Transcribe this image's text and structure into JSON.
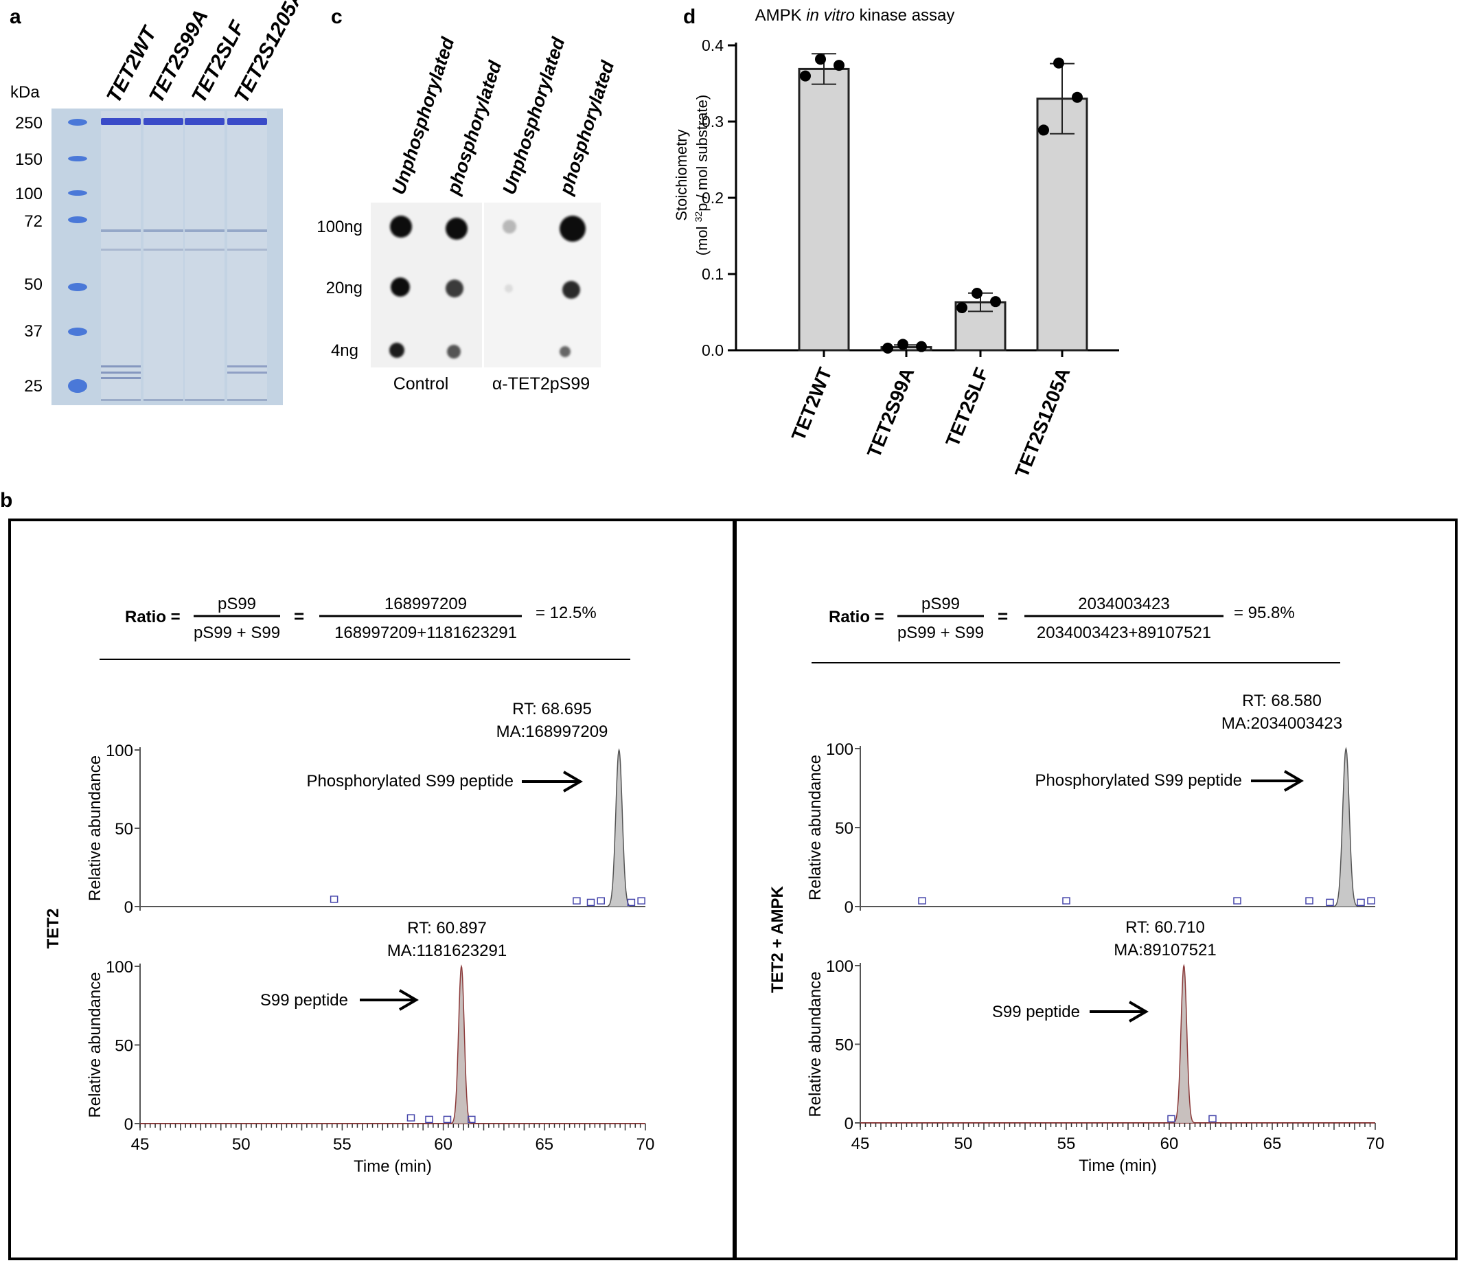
{
  "panel_a": {
    "letter": "a",
    "unit": "kDa",
    "lanes": [
      "TET2WT",
      "TET2S99A",
      "TET2SLF",
      "TET2S1205A"
    ],
    "markers": [
      "250",
      "150",
      "100",
      "72",
      "50",
      "37",
      "25"
    ],
    "colors": {
      "gel": "#c3d3e3",
      "band": "#3a4bc8",
      "marker": "#4a78d8"
    }
  },
  "panel_c": {
    "letter": "c",
    "columns": [
      "Unphosphorylated",
      "phosphorylated",
      "Unphosphorylated",
      "phosphorylated"
    ],
    "rows": [
      "100ng",
      "20ng",
      "4ng"
    ],
    "blots": [
      "Control",
      "α-TET2pS99"
    ]
  },
  "panel_d": {
    "letter": "d",
    "title_pre": "AMPK ",
    "title_em": "in vitro",
    "title_post": " kinase assay",
    "ylabel_line1": "Stoichiometry",
    "ylabel_line2_pre": "(mol ",
    "ylabel_sup": "32",
    "ylabel_line2_post": "p / mol substrate)"
  },
  "panel_b": {
    "letter": "b",
    "left": {
      "sample": "TET2",
      "ratio_label": "Ratio =",
      "numerator": "pS99",
      "denominator": "pS99 + S99",
      "equals": "=",
      "num_value": "168997209",
      "den_value": "168997209+1181623291",
      "result": "= 12.5%",
      "top": {
        "rt": "RT: 68.695",
        "ma": "MA:168997209",
        "peak_label": "Phosphorylated S99 peptide"
      },
      "bottom": {
        "rt": "RT: 60.897",
        "ma": "MA:1181623291",
        "peak_label": "S99 peptide"
      }
    },
    "right": {
      "sample": "TET2 + AMPK",
      "ratio_label": "Ratio =",
      "numerator": "pS99",
      "denominator": "pS99 + S99",
      "equals": "=",
      "num_value": "2034003423",
      "den_value": "2034003423+89107521",
      "result": "= 95.8%",
      "top": {
        "rt": "RT: 68.580",
        "ma": "MA:2034003423",
        "peak_label": "Phosphorylated S99 peptide"
      },
      "bottom": {
        "rt": "RT: 60.710",
        "ma": "MA:89107521",
        "peak_label": "S99 peptide"
      }
    },
    "yaxis_label": "Relative abundance",
    "xaxis_label": "Time (min)",
    "y_ticks": [
      "0",
      "50",
      "100"
    ],
    "x_ticks": [
      "45",
      "50",
      "55",
      "60",
      "65",
      "70"
    ]
  },
  "chart_data": [
    {
      "type": "bar",
      "title": "AMPK in vitro kinase assay",
      "xlabel": "",
      "ylabel": "Stoichiometry (mol 32p / mol substrate)",
      "categories": [
        "TET2WT",
        "TET2S99A",
        "TET2SLF",
        "TET2S1205A"
      ],
      "values": [
        0.369,
        0.004,
        0.063,
        0.33
      ],
      "errors": [
        0.02,
        0.003,
        0.012,
        0.046
      ],
      "points": [
        [
          0.38,
          0.358,
          0.372
        ],
        [
          0.006,
          0.001,
          0.003
        ],
        [
          0.073,
          0.054,
          0.062
        ],
        [
          0.375,
          0.287,
          0.33
        ]
      ],
      "ylim": [
        0,
        0.4
      ],
      "yticks": [
        "0.0",
        "0.1",
        "0.2",
        "0.3",
        "0.4"
      ]
    },
    {
      "type": "line",
      "title": "TET2 - Phosphorylated S99 peptide",
      "xlabel": "Time (min)",
      "ylabel": "Relative abundance",
      "xlim": [
        45,
        70
      ],
      "ylim": [
        0,
        100
      ],
      "peak": {
        "rt": 68.695,
        "width": 0.16,
        "height": 100
      }
    },
    {
      "type": "line",
      "title": "TET2 - S99 peptide",
      "xlabel": "Time (min)",
      "ylabel": "Relative abundance",
      "xlim": [
        45,
        70
      ],
      "ylim": [
        0,
        100
      ],
      "peak": {
        "rt": 60.897,
        "width": 0.14,
        "height": 100
      }
    },
    {
      "type": "line",
      "title": "TET2 + AMPK - Phosphorylated S99 peptide",
      "xlabel": "Time (min)",
      "ylabel": "Relative abundance",
      "xlim": [
        45,
        70
      ],
      "ylim": [
        0,
        100
      ],
      "peak": {
        "rt": 68.58,
        "width": 0.16,
        "height": 100
      }
    },
    {
      "type": "line",
      "title": "TET2 + AMPK - S99 peptide",
      "xlabel": "Time (min)",
      "ylabel": "Relative abundance",
      "xlim": [
        45,
        70
      ],
      "ylim": [
        0,
        100
      ],
      "peak": {
        "rt": 60.71,
        "width": 0.14,
        "height": 100
      }
    }
  ]
}
